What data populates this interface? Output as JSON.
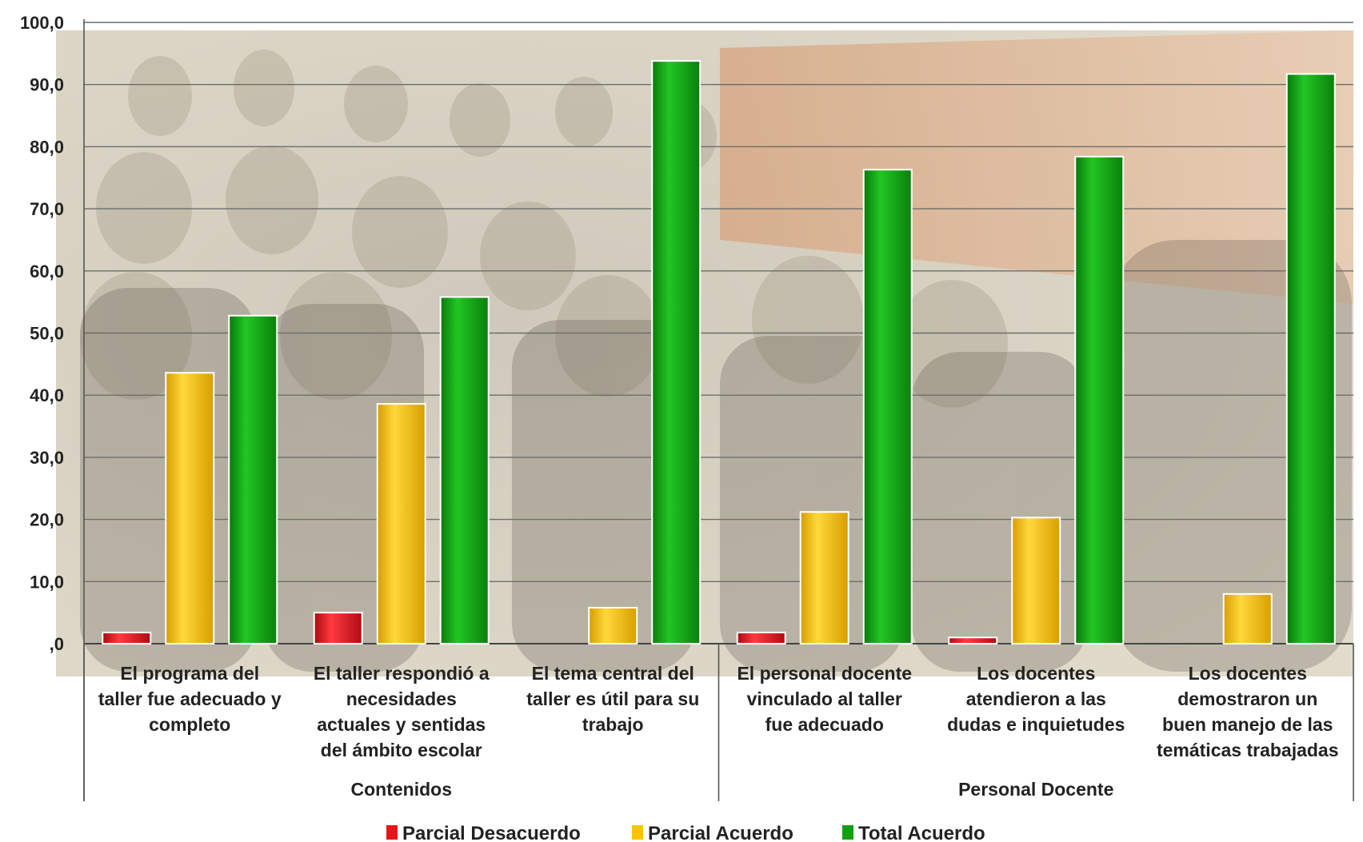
{
  "chart_data": {
    "type": "bar",
    "title": "",
    "xlabel": "",
    "ylabel": "",
    "ylim": [
      0,
      100
    ],
    "y_ticks": [
      "100,0",
      "90,0",
      "80,0",
      "70,0",
      "60,0",
      "50,0",
      "40,0",
      "30,0",
      "20,0",
      "10,0",
      ",0"
    ],
    "grid": true,
    "legend_position": "bottom",
    "background": "photo of seated workshop audience (faded)",
    "categories": [
      [
        "El programa del",
        "taller fue adecuado y",
        "completo"
      ],
      [
        "El taller respondió a",
        "necesidades",
        "actuales y sentidas",
        "del ámbito escolar"
      ],
      [
        "El tema central del",
        "taller es útil para su",
        "trabajo"
      ],
      [
        "El personal docente",
        "vinculado al taller",
        "fue adecuado"
      ],
      [
        "Los docentes",
        "atendieron a las",
        "dudas e inquietudes"
      ],
      [
        "Los docentes",
        "demostraron un",
        "buen manejo de las",
        "temáticas trabajadas"
      ]
    ],
    "groups": [
      {
        "name": "Contenidos",
        "span": [
          0,
          2
        ]
      },
      {
        "name": "Personal Docente",
        "span": [
          3,
          5
        ]
      }
    ],
    "series": [
      {
        "name": "Parcial Desacuerdo",
        "color": "#e8141b",
        "values": [
          1.8,
          5.0,
          0,
          1.8,
          1.0,
          0
        ]
      },
      {
        "name": "Parcial Acuerdo",
        "color": "#fcc400",
        "values": [
          43.6,
          38.6,
          5.8,
          21.2,
          20.3,
          8.0
        ]
      },
      {
        "name": "Total Acuerdo",
        "color": "#11a012",
        "values": [
          52.8,
          55.8,
          93.8,
          76.3,
          78.4,
          91.7
        ]
      }
    ]
  }
}
